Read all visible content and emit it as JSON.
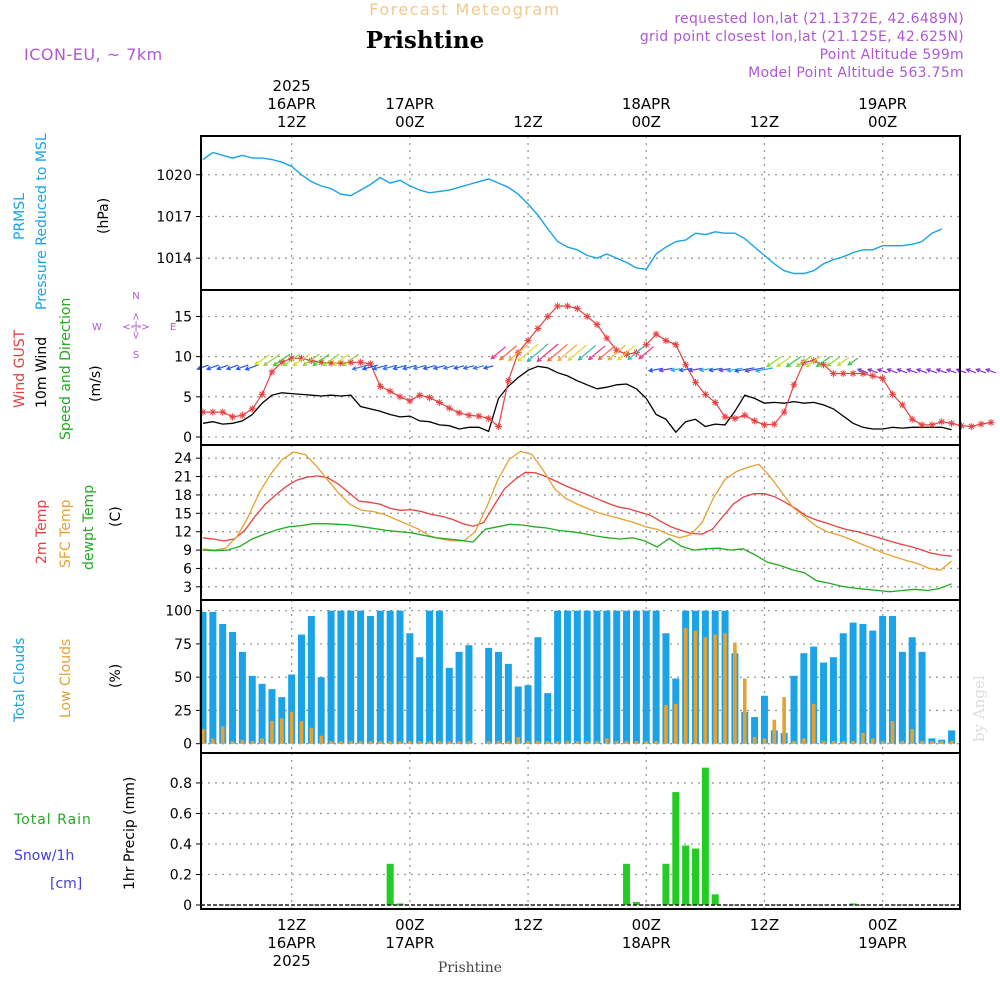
{
  "header": {
    "title": "Forecast Meteogram",
    "location": "Prishtine",
    "model": "ICON-EU, ~ 7km",
    "requested": "requested lon,lat (21.1372E, 42.6489N)",
    "grid": "grid point closest lon,lat (21.125E, 42.625N)",
    "point_alt": "Point Altitude 599m",
    "model_alt": "Model Point Altitude 563.75m"
  },
  "footer": {
    "location": "Prishtine"
  },
  "watermark": "by Angel",
  "labels": {
    "pressure": {
      "line1": "PRMSL",
      "line2": "Pressure Reduced to MSL",
      "unit": "(hPa)"
    },
    "wind": {
      "gust": "Wind GUST",
      "wind10m": "10m Wind",
      "speed_dir": "Speed and Direction",
      "unit": "(m/s)",
      "compass_n": "N",
      "compass_s": "S",
      "compass_w": "W",
      "compass_e": "E",
      "compass_ns": "<-|->",
      "compass_we": "<-|->"
    },
    "temp": {
      "t2m": "2m Temp",
      "sfc": "SFC Temp",
      "dewpt": "dewpt Temp",
      "unit": "(C)"
    },
    "clouds": {
      "total": "Total Clouds",
      "low": "Low Clouds",
      "unit": "(%)"
    },
    "precip": {
      "total_rain": "Total  Rain",
      "snow": "Snow/1h",
      "snow_unit": "[cm]",
      "unit": "1hr Precip (mm)"
    }
  },
  "colors": {
    "pressure": "#1aa3e6",
    "gust": "#e84040",
    "wind": "#000000",
    "t2m": "#e84040",
    "sfc": "#e8a030",
    "dewpt": "#22aa22",
    "total_clouds": "#1aa3e6",
    "low_clouds": "#e8a030",
    "rain": "#22cc22",
    "snow": "#4040e0"
  },
  "time_axis": {
    "start": "2025-04-16 03Z",
    "end": "2025-04-19 09Z",
    "step_hours": 1,
    "top_ticks": [
      {
        "hour": 9,
        "lines": [
          "2025",
          "16APR",
          "12Z"
        ]
      },
      {
        "hour": 21,
        "lines": [
          "17APR",
          "00Z"
        ]
      },
      {
        "hour": 33,
        "lines": [
          "12Z"
        ]
      },
      {
        "hour": 45,
        "lines": [
          "18APR",
          "00Z"
        ]
      },
      {
        "hour": 57,
        "lines": [
          "12Z"
        ]
      },
      {
        "hour": 69,
        "lines": [
          "19APR",
          "00Z"
        ]
      }
    ],
    "bottom_ticks": [
      {
        "hour": 9,
        "lines": [
          "12Z",
          "16APR",
          "2025"
        ]
      },
      {
        "hour": 21,
        "lines": [
          "00Z",
          "17APR"
        ]
      },
      {
        "hour": 33,
        "lines": [
          "12Z"
        ]
      },
      {
        "hour": 45,
        "lines": [
          "00Z",
          "18APR"
        ]
      },
      {
        "hour": 57,
        "lines": [
          "12Z"
        ]
      },
      {
        "hour": 69,
        "lines": [
          "00Z",
          "19APR"
        ]
      }
    ]
  },
  "chart_data": [
    {
      "type": "line",
      "ylabel": "(hPa)",
      "yticks": [
        1014,
        1017,
        1020
      ],
      "ylim": [
        1012,
        1022.5
      ],
      "series": [
        {
          "name": "PRMSL",
          "values": [
            1021.1,
            1021.6,
            1021.4,
            1021.2,
            1021.4,
            1021.2,
            1021.2,
            1021.1,
            1020.9,
            1020.6,
            1020.0,
            1019.5,
            1019.2,
            1019.0,
            1018.6,
            1018.5,
            1018.9,
            1019.3,
            1019.8,
            1019.4,
            1019.6,
            1019.2,
            1018.9,
            1018.7,
            1018.8,
            1018.9,
            1019.1,
            1019.3,
            1019.5,
            1019.7,
            1019.4,
            1019.1,
            1018.6,
            1017.9,
            1017.1,
            1016.1,
            1015.2,
            1014.8,
            1014.6,
            1014.2,
            1014.0,
            1014.3,
            1014.0,
            1013.7,
            1013.3,
            1013.2,
            1014.3,
            1014.8,
            1015.2,
            1015.3,
            1015.8,
            1015.7,
            1015.9,
            1015.8,
            1015.8,
            1015.4,
            1014.8,
            1014.2,
            1013.6,
            1013.1,
            1012.9,
            1012.9,
            1013.1,
            1013.6,
            1013.9,
            1014.1,
            1014.4,
            1014.6,
            1014.6,
            1014.9,
            1014.9,
            1014.9,
            1015.0,
            1015.2,
            1015.8,
            1016.1
          ]
        }
      ]
    },
    {
      "type": "line",
      "ylabel": "(m/s)",
      "yticks": [
        0,
        5,
        10,
        15
      ],
      "ylim": [
        -0.5,
        17.8
      ],
      "series": [
        {
          "name": "Wind GUST",
          "values": [
            3.1,
            3.1,
            3.1,
            2.5,
            2.7,
            3.5,
            5.3,
            8.1,
            9.3,
            9.8,
            9.8,
            9.5,
            9.3,
            9.2,
            9.2,
            9.3,
            9.3,
            9.1,
            6.3,
            5.7,
            5.0,
            4.5,
            5.2,
            4.9,
            4.3,
            3.6,
            3.0,
            2.7,
            2.6,
            2.3,
            1.3,
            7.0,
            10.5,
            12.0,
            13.5,
            15.0,
            16.3,
            16.3,
            16.0,
            15.0,
            14.0,
            12.3,
            10.8,
            10.3,
            10.5,
            11.5,
            12.8,
            12.0,
            11.5,
            9.0,
            6.8,
            5.3,
            4.3,
            2.5,
            2.3,
            2.7,
            2.0,
            1.5,
            1.6,
            3.1,
            6.5,
            9.3,
            9.5,
            9.0,
            7.9,
            7.9,
            7.9,
            7.9,
            7.6,
            7.3,
            5.3,
            4.0,
            2.2,
            1.5,
            1.5,
            1.9,
            1.7,
            1.4,
            1.3,
            1.6,
            1.8
          ]
        },
        {
          "name": "10m Wind",
          "values": [
            1.7,
            1.9,
            1.6,
            1.7,
            2.0,
            2.8,
            4.2,
            5.2,
            5.5,
            5.4,
            5.3,
            5.2,
            5.1,
            5.2,
            5.1,
            5.2,
            3.8,
            3.5,
            3.2,
            2.8,
            2.5,
            2.6,
            2.0,
            1.9,
            1.5,
            1.4,
            1.0,
            1.2,
            1.2,
            0.7,
            4.8,
            6.3,
            7.4,
            8.3,
            8.8,
            8.6,
            8.0,
            7.6,
            7.0,
            6.5,
            6.0,
            6.2,
            6.5,
            6.6,
            6.0,
            4.8,
            2.8,
            2.2,
            0.6,
            1.9,
            2.2,
            1.3,
            1.6,
            1.5,
            3.2,
            5.2,
            4.8,
            4.2,
            4.3,
            4.2,
            4.4,
            4.2,
            4.3,
            4.0,
            3.5,
            2.6,
            1.7,
            1.2,
            1.0,
            1.0,
            1.2,
            1.1,
            1.2,
            1.2,
            1.2,
            1.2,
            0.9
          ]
        }
      ]
    },
    {
      "type": "line",
      "ylabel": "(C)",
      "yticks": [
        3,
        6,
        9,
        12,
        15,
        18,
        21,
        24
      ],
      "ylim": [
        1.5,
        25.5
      ],
      "series": [
        {
          "name": "2m Temp",
          "values": [
            11.0,
            10.8,
            10.5,
            10.8,
            12.2,
            14.5,
            16.5,
            18.0,
            19.4,
            20.4,
            20.9,
            21.1,
            20.8,
            19.8,
            18.4,
            17.0,
            16.8,
            16.5,
            15.8,
            15.5,
            15.6,
            15.3,
            14.8,
            14.5,
            14.0,
            13.3,
            12.9,
            13.5,
            16.3,
            19.0,
            20.5,
            21.7,
            21.6,
            21.0,
            20.2,
            19.4,
            18.7,
            18.0,
            17.3,
            16.6,
            16.0,
            15.7,
            15.2,
            14.7,
            13.7,
            12.8,
            12.2,
            11.7,
            11.6,
            12.4,
            14.5,
            16.5,
            17.7,
            18.2,
            18.2,
            17.7,
            16.8,
            15.8,
            14.6,
            13.9,
            13.4,
            12.8,
            12.3,
            12.0,
            11.5,
            11.0,
            10.5,
            10.0,
            9.6,
            9.1,
            8.5,
            8.2,
            8.0
          ]
        },
        {
          "name": "SFC Temp",
          "values": [
            9.2,
            9.0,
            9.3,
            11.2,
            14.5,
            18.5,
            21.5,
            23.8,
            25.0,
            24.6,
            22.7,
            20.4,
            18.2,
            16.4,
            15.5,
            15.3,
            14.8,
            14.0,
            13.2,
            12.4,
            11.3,
            10.8,
            10.5,
            10.5,
            12.0,
            16.0,
            20.5,
            23.8,
            25.1,
            24.6,
            22.0,
            19.0,
            17.4,
            16.5,
            15.7,
            15.0,
            14.5,
            14.0,
            13.5,
            12.8,
            12.4,
            11.6,
            11.0,
            11.5,
            13.5,
            17.5,
            20.5,
            21.8,
            22.5,
            23.0,
            21.0,
            18.5,
            16.0,
            14.5,
            13.0,
            12.0,
            11.5,
            10.8,
            10.0,
            9.3,
            8.5,
            7.9,
            7.3,
            6.8,
            6.0,
            5.7,
            7.2
          ]
        },
        {
          "name": "dewpt Temp",
          "values": [
            9.0,
            8.9,
            9.0,
            9.6,
            10.8,
            11.6,
            12.3,
            12.8,
            13.0,
            13.3,
            13.3,
            13.2,
            13.1,
            12.8,
            12.5,
            12.2,
            12.0,
            11.8,
            11.4,
            11.0,
            10.8,
            10.6,
            10.3,
            12.4,
            12.8,
            13.2,
            13.1,
            12.8,
            12.6,
            12.2,
            12.0,
            11.7,
            11.3,
            11.0,
            10.8,
            11.0,
            10.5,
            9.5,
            10.9,
            9.6,
            9.0,
            9.2,
            9.3,
            9.0,
            9.2,
            8.2,
            7.0,
            6.5,
            5.8,
            5.3,
            4.0,
            3.6,
            3.1,
            2.8,
            2.6,
            2.4,
            2.2,
            2.4,
            2.6,
            2.4,
            2.7,
            3.5
          ]
        }
      ]
    },
    {
      "type": "bar",
      "ylabel": "(%)",
      "yticks": [
        0,
        25,
        50,
        75,
        100
      ],
      "ylim": [
        -4,
        105
      ],
      "series": [
        {
          "name": "Total Clouds",
          "values": [
            99,
            99,
            90,
            84,
            69,
            51,
            45,
            41,
            35,
            52,
            82,
            96,
            50,
            100,
            100,
            100,
            100,
            96,
            100,
            100,
            100,
            83,
            65,
            100,
            100,
            57,
            69,
            74,
            0,
            72,
            69,
            60,
            43,
            44,
            80,
            38,
            100,
            100,
            100,
            100,
            100,
            100,
            100,
            100,
            100,
            100,
            100,
            83,
            49,
            100,
            100,
            100,
            100,
            100,
            68,
            24,
            20,
            36,
            10,
            8,
            51,
            68,
            73,
            61,
            65,
            83,
            91,
            90,
            85,
            96,
            96,
            69,
            80,
            69,
            4,
            3,
            10
          ]
        },
        {
          "name": "Low Clouds",
          "values": [
            11,
            4,
            13,
            2,
            3,
            2,
            4,
            17,
            19,
            24,
            17,
            12,
            6,
            2,
            2,
            2,
            2,
            2,
            2,
            2,
            2,
            2,
            2,
            2,
            2,
            2,
            2,
            2,
            0,
            2,
            2,
            2,
            5,
            2,
            2,
            2,
            2,
            2,
            2,
            2,
            2,
            4,
            2,
            2,
            2,
            2,
            2,
            29,
            30,
            87,
            85,
            80,
            82,
            83,
            76,
            49,
            5,
            4,
            18,
            35,
            2,
            4,
            30,
            2,
            2,
            2,
            2,
            8,
            4,
            2,
            17,
            2,
            11,
            2,
            2,
            2,
            2
          ]
        }
      ]
    },
    {
      "type": "bar",
      "ylabel": "1hr Precip (mm)",
      "yticks": [
        0,
        0.2,
        0.4,
        0.6,
        0.8
      ],
      "ylim": [
        0,
        0.97
      ],
      "series": [
        {
          "name": "Total Rain",
          "values": [
            0,
            0,
            0,
            0,
            0,
            0,
            0,
            0,
            0,
            0,
            0,
            0,
            0,
            0,
            0,
            0,
            0,
            0,
            0,
            0.27,
            0.01,
            0,
            0,
            0,
            0,
            0,
            0,
            0,
            0,
            0,
            0,
            0,
            0,
            0,
            0,
            0,
            0,
            0,
            0,
            0,
            0,
            0,
            0,
            0.27,
            0.02,
            0,
            0,
            0.27,
            0.74,
            0.39,
            0.37,
            0.9,
            0.07,
            0,
            0,
            0,
            0,
            0,
            0,
            0,
            0,
            0,
            0,
            0,
            0,
            0,
            0.01,
            0,
            0,
            0,
            0,
            0,
            0,
            0,
            0,
            0
          ]
        },
        {
          "name": "Snow/1h",
          "values": []
        }
      ]
    }
  ]
}
